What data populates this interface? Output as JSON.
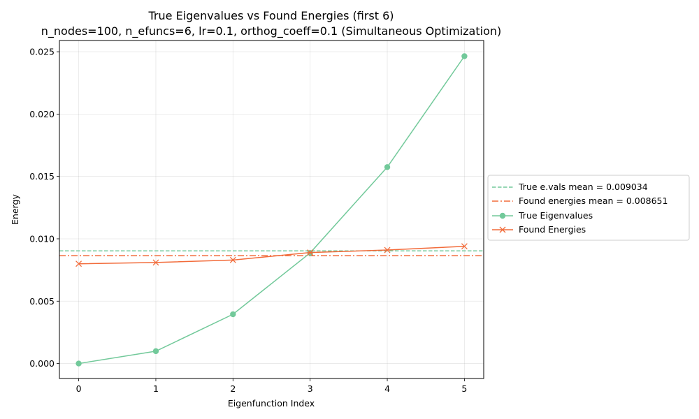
{
  "chart_data": {
    "type": "line",
    "title": "True Eigenvalues vs Found Energies (first 6)",
    "subtitle": "n_nodes=100, n_efuncs=6, lr=0.1, orthog_coeff=0.1 (Simultaneous Optimization)",
    "xlabel": "Eigenfunction Index",
    "ylabel": "Energy",
    "x": [
      0,
      1,
      2,
      3,
      4,
      5
    ],
    "x_tick_labels": [
      "0",
      "1",
      "2",
      "3",
      "4",
      "5"
    ],
    "y_tick_labels": [
      "0.000",
      "0.005",
      "0.010",
      "0.015",
      "0.020",
      "0.025"
    ],
    "y_ticks": [
      0,
      0.005,
      0.01,
      0.015,
      0.02,
      0.025
    ],
    "xlim": [
      -0.25,
      5.25
    ],
    "ylim": [
      -0.0012,
      0.0259
    ],
    "grid": true,
    "legend_position": "outside-right",
    "series": [
      {
        "name": "True Eigenvalues",
        "values": [
          0.0,
          0.00099,
          0.00395,
          0.00887,
          0.01575,
          0.02464
        ],
        "color": "#72c99a",
        "marker": "circle",
        "line_style": "solid"
      },
      {
        "name": "Found Energies",
        "values": [
          0.008,
          0.0081,
          0.0083,
          0.0089,
          0.0091,
          0.0094
        ],
        "color": "#f26b3a",
        "marker": "x",
        "line_style": "solid"
      }
    ],
    "reference_lines": [
      {
        "name": "True e.vals mean = 0.009034",
        "value": 0.009034,
        "color": "#72c99a",
        "line_style": "dashed"
      },
      {
        "name": "Found energies mean = 0.008651",
        "value": 0.008651,
        "color": "#f26b3a",
        "line_style": "dashdot"
      }
    ]
  }
}
